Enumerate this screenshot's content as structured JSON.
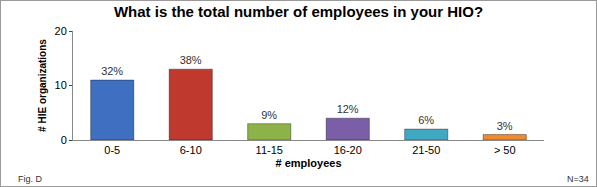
{
  "chart_data": {
    "type": "bar",
    "title": "What is the total number of employees in your HIO?",
    "x_label": "# employees",
    "y_label": "# HIE organizations",
    "categories": [
      "0-5",
      "6-10",
      "11-15",
      "16-20",
      "21-50",
      "> 50"
    ],
    "values": [
      11,
      13,
      3,
      4,
      2,
      1
    ],
    "percent_labels": [
      "32%",
      "38%",
      "9%",
      "12%",
      "6%",
      "3%"
    ],
    "colors": [
      "#3f6fc0",
      "#c0392f",
      "#8db24a",
      "#7a5ea8",
      "#3fa9c3",
      "#f08a2c"
    ],
    "ylim": [
      0,
      20
    ],
    "yticks": [
      0,
      10,
      20
    ],
    "grid": false,
    "annotations": [
      "Fig. D",
      "N=34"
    ]
  }
}
